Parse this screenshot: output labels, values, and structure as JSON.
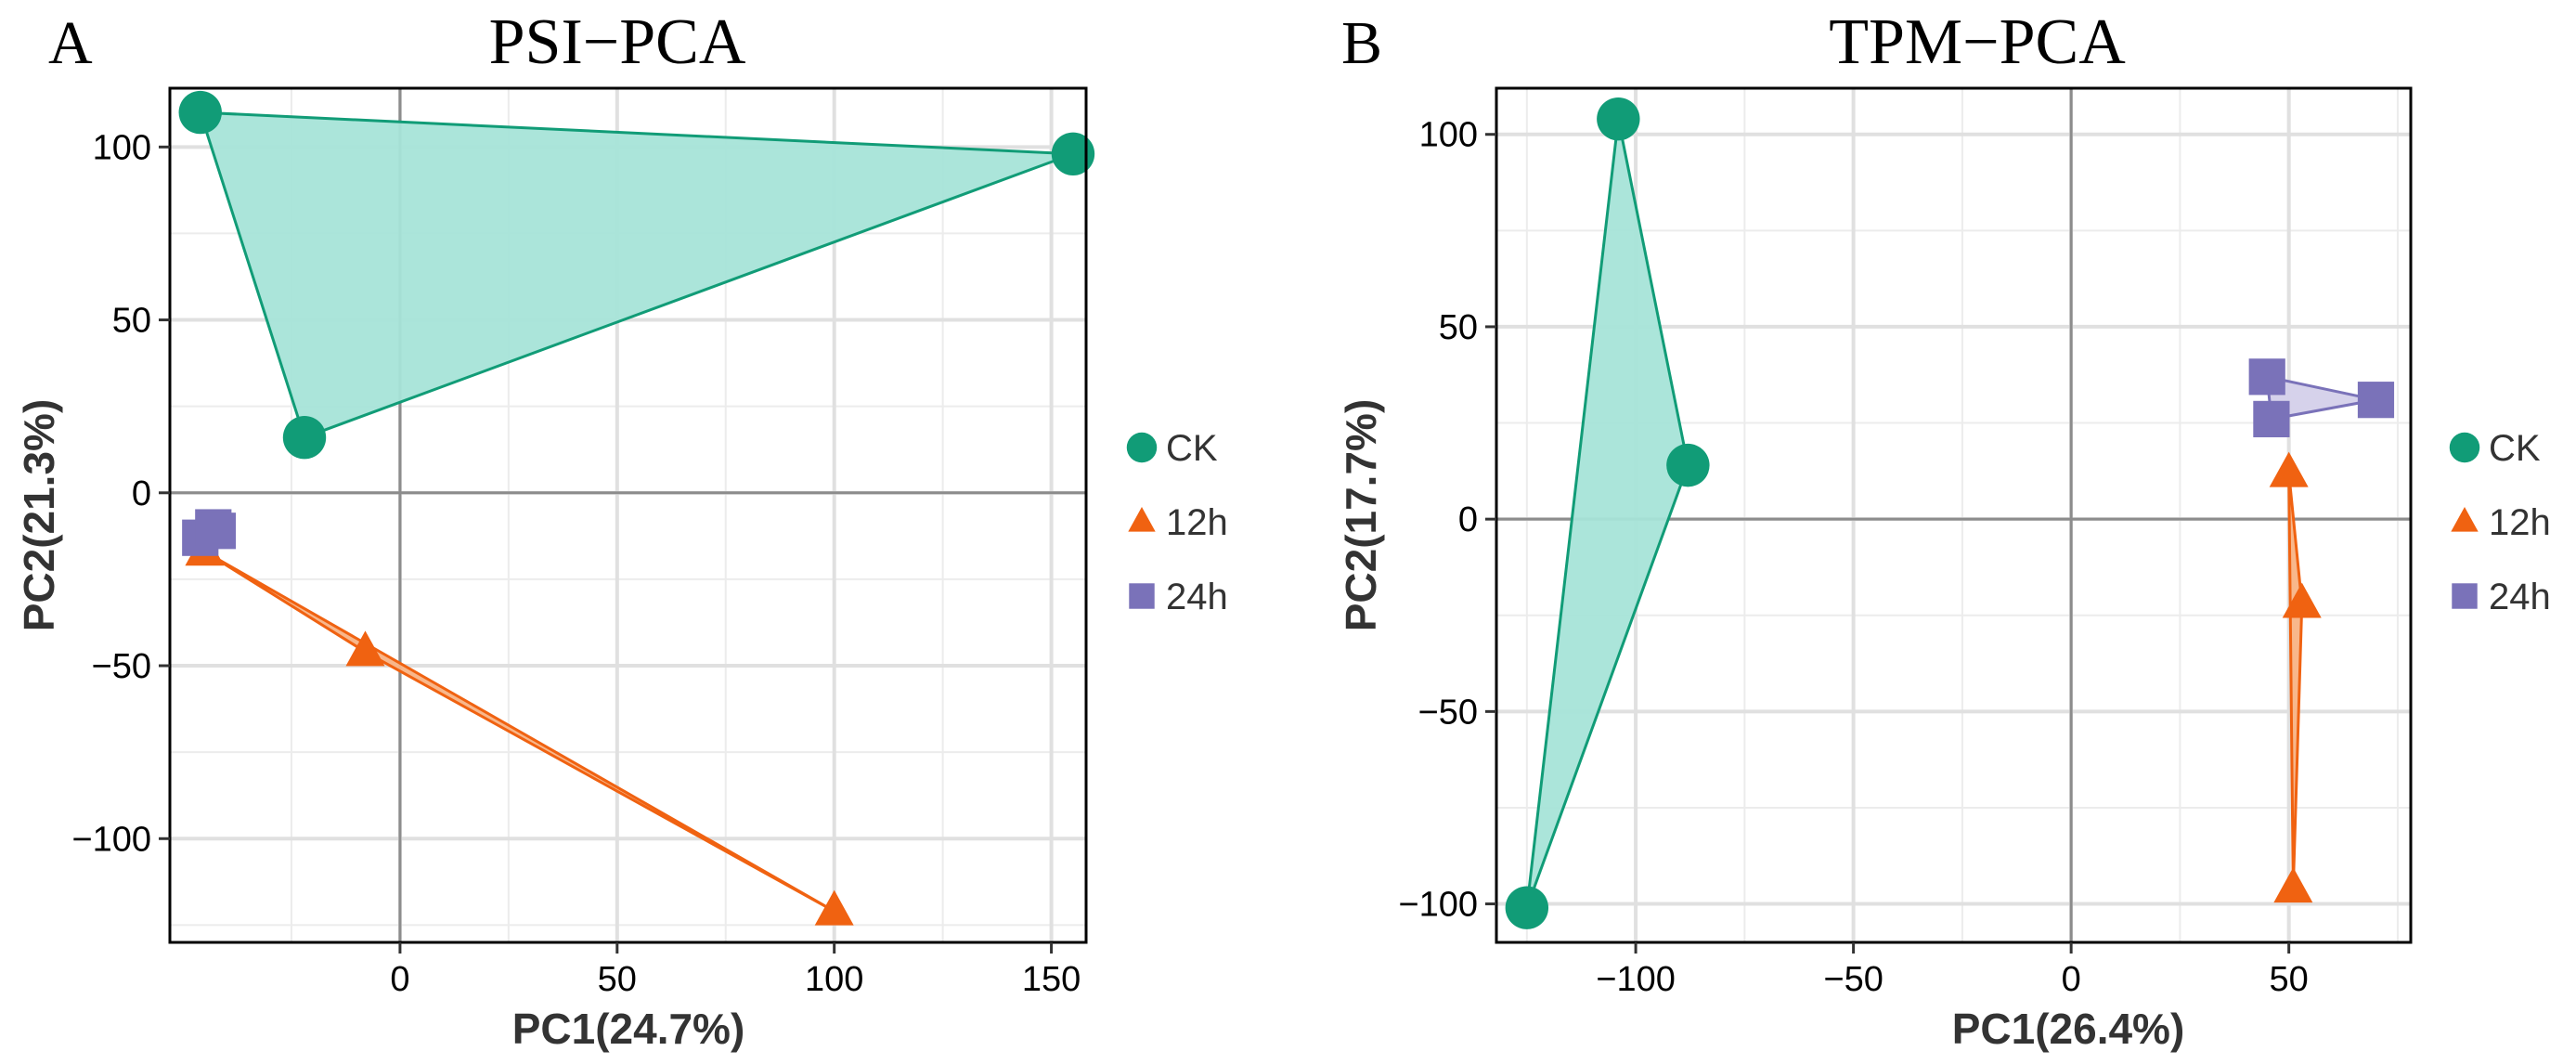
{
  "chart_data": [
    {
      "type": "scatter",
      "panel_label": "A",
      "title": "PSI−PCA",
      "xlabel": "PC1(24.7%)",
      "ylabel": "PC2(21.3%)",
      "xlim": [
        -53,
        158
      ],
      "ylim": [
        -130,
        117
      ],
      "xticks": [
        0,
        50,
        100,
        150
      ],
      "xtick_labels": [
        "0",
        "50",
        "100",
        "150"
      ],
      "yticks": [
        -100,
        -50,
        0,
        50,
        100
      ],
      "ytick_labels": [
        "−100",
        "−50",
        "0",
        "50",
        "100"
      ],
      "grid": true,
      "reference_lines": {
        "x": 0,
        "y": 0
      },
      "legend_position": "right",
      "series": [
        {
          "name": "CK",
          "color": "#119c77",
          "fill": "#a6e4d8",
          "marker": "circle",
          "hull": true,
          "x": [
            -46,
            155,
            -22
          ],
          "y": [
            110,
            98,
            16
          ]
        },
        {
          "name": "12h",
          "color": "#f06211",
          "fill": "#f8b385",
          "marker": "triangle",
          "hull": true,
          "x": [
            -45,
            -8,
            100
          ],
          "y": [
            -17,
            -46,
            -121
          ]
        },
        {
          "name": "24h",
          "color": "#7a72b9",
          "fill": "#d4d0ea",
          "marker": "square",
          "hull": true,
          "x": [
            -46,
            -43,
            -42
          ],
          "y": [
            -13,
            -10,
            -11
          ]
        }
      ]
    },
    {
      "type": "scatter",
      "panel_label": "B",
      "title": "TPM−PCA",
      "xlabel": "PC1(26.4%)",
      "ylabel": "PC2(17.7%)",
      "xlim": [
        -132,
        78
      ],
      "ylim": [
        -110,
        112
      ],
      "xticks": [
        -100,
        -50,
        0,
        50
      ],
      "xtick_labels": [
        "−100",
        "−50",
        "0",
        "50"
      ],
      "yticks": [
        -100,
        -50,
        0,
        50,
        100
      ],
      "ytick_labels": [
        "−100",
        "−50",
        "0",
        "50",
        "100"
      ],
      "grid": true,
      "reference_lines": {
        "x": 0,
        "y": 0
      },
      "legend_position": "right",
      "series": [
        {
          "name": "CK",
          "color": "#119c77",
          "fill": "#a6e4d8",
          "marker": "circle",
          "hull": true,
          "x": [
            -104,
            -88,
            -125
          ],
          "y": [
            104,
            14,
            -101
          ]
        },
        {
          "name": "12h",
          "color": "#f06211",
          "fill": "#f8b385",
          "marker": "triangle",
          "hull": true,
          "x": [
            50,
            53,
            51
          ],
          "y": [
            12,
            -22,
            -96
          ]
        },
        {
          "name": "24h",
          "color": "#7a72b9",
          "fill": "#d4d0ea",
          "marker": "square",
          "hull": true,
          "x": [
            45,
            70,
            46
          ],
          "y": [
            37,
            31,
            26
          ]
        }
      ]
    }
  ]
}
